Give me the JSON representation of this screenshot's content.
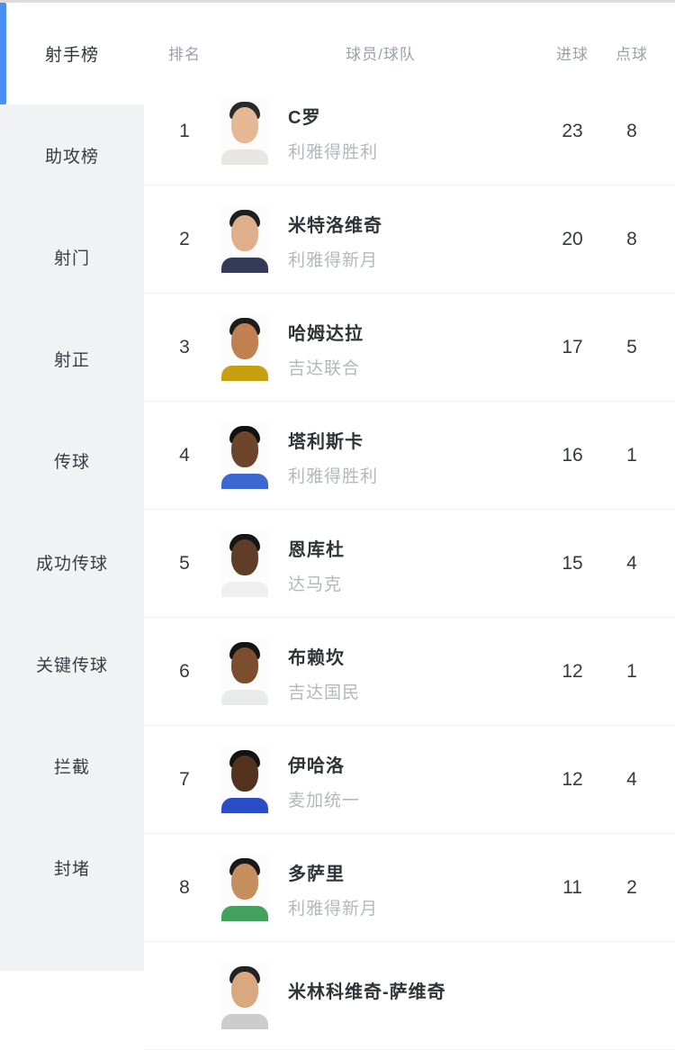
{
  "accent_color": "#4a90f2",
  "sidebar": {
    "items": [
      {
        "key": "top-scorers",
        "label": "射手榜",
        "active": true
      },
      {
        "key": "assists",
        "label": "助攻榜",
        "active": false
      },
      {
        "key": "shots",
        "label": "射门",
        "active": false
      },
      {
        "key": "shots-on-target",
        "label": "射正",
        "active": false
      },
      {
        "key": "passes",
        "label": "传球",
        "active": false
      },
      {
        "key": "successful-passes",
        "label": "成功传球",
        "active": false
      },
      {
        "key": "key-passes",
        "label": "关键传球",
        "active": false
      },
      {
        "key": "interceptions",
        "label": "拦截",
        "active": false
      },
      {
        "key": "blocks",
        "label": "封堵",
        "active": false
      }
    ]
  },
  "table": {
    "headers": {
      "rank": "排名",
      "player": "球员/球队",
      "goals": "进球",
      "penalties": "点球"
    },
    "rows": [
      {
        "rank": "1",
        "player": "C罗",
        "team": "利雅得胜利",
        "goals": "23",
        "penalties": "8",
        "avatar": {
          "hair": "#2a2a2a",
          "skin": "#e4b894",
          "jersey": "#e8e6e3"
        }
      },
      {
        "rank": "2",
        "player": "米特洛维奇",
        "team": "利雅得新月",
        "goals": "20",
        "penalties": "8",
        "avatar": {
          "hair": "#1f1f1f",
          "skin": "#dfae8a",
          "jersey": "#343a58"
        }
      },
      {
        "rank": "3",
        "player": "哈姆达拉",
        "team": "吉达联合",
        "goals": "17",
        "penalties": "5",
        "avatar": {
          "hair": "#1c1c1c",
          "skin": "#c08050",
          "jersey": "#c7a012"
        }
      },
      {
        "rank": "4",
        "player": "塔利斯卡",
        "team": "利雅得胜利",
        "goals": "16",
        "penalties": "1",
        "avatar": {
          "hair": "#111111",
          "skin": "#6d452b",
          "jersey": "#3b67d2"
        }
      },
      {
        "rank": "5",
        "player": "恩库杜",
        "team": "达马克",
        "goals": "15",
        "penalties": "4",
        "avatar": {
          "hair": "#161616",
          "skin": "#5f3d26",
          "jersey": "#efefef"
        }
      },
      {
        "rank": "6",
        "player": "布赖坎",
        "team": "吉达国民",
        "goals": "12",
        "penalties": "1",
        "avatar": {
          "hair": "#141414",
          "skin": "#7c4e2e",
          "jersey": "#e8ebe9"
        }
      },
      {
        "rank": "7",
        "player": "伊哈洛",
        "team": "麦加统一",
        "goals": "12",
        "penalties": "4",
        "avatar": {
          "hair": "#131313",
          "skin": "#53331e",
          "jersey": "#2b4cc4"
        }
      },
      {
        "rank": "8",
        "player": "多萨里",
        "team": "利雅得新月",
        "goals": "11",
        "penalties": "2",
        "avatar": {
          "hair": "#191919",
          "skin": "#c48e5d",
          "jersey": "#43a25e"
        }
      },
      {
        "rank": "",
        "player": "米林科维奇-萨维奇",
        "team": "",
        "goals": "",
        "penalties": "",
        "avatar": {
          "hair": "#222222",
          "skin": "#d9a87e",
          "jersey": "#cccccc"
        }
      }
    ]
  }
}
